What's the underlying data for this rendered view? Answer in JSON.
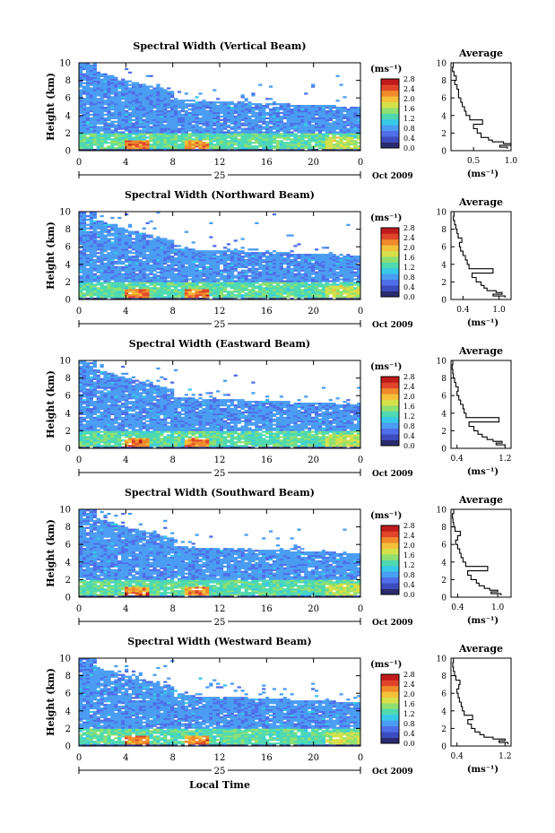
{
  "figure": {
    "xlabel": "Local Time",
    "date_label": "Oct 2009",
    "day_label": "25",
    "average_title": "Average",
    "ylabel": "Height (km)",
    "unit_label": "(ms⁻¹)",
    "colors": {
      "scale": [
        "#2a2a6e",
        "#3b4cc0",
        "#4f6ee8",
        "#4a9df2",
        "#38c9e8",
        "#4fd9b0",
        "#8fe070",
        "#d6e04a",
        "#f5c03a",
        "#f08a2a",
        "#e0452a",
        "#c01a1a"
      ]
    }
  },
  "chart_data": [
    {
      "type": "heatmap",
      "title": "Spectral Width (Vertical Beam)",
      "xlabel": "",
      "ylabel": "Height (km)",
      "xlim": [
        0,
        24
      ],
      "ylim": [
        0,
        10
      ],
      "xticks": [
        "0",
        "4",
        "8",
        "12",
        "16",
        "20",
        "0"
      ],
      "yticks": [
        "0",
        "2",
        "4",
        "6",
        "8",
        "10"
      ],
      "colorbar": {
        "range": [
          0.0,
          2.8
        ],
        "ticks": [
          "0.0",
          "0.4",
          "0.8",
          "1.2",
          "1.6",
          "2.0",
          "2.4",
          "2.8"
        ]
      },
      "average": {
        "xlim": [
          0.2,
          1.0
        ],
        "xticks": [
          "0.5",
          "1.0"
        ],
        "xlabel": "(ms⁻¹)",
        "profile": [
          [
            0.2,
            0.95
          ],
          [
            0.4,
            0.85
          ],
          [
            0.6,
            1.0
          ],
          [
            0.8,
            0.9
          ],
          [
            1.0,
            0.75
          ],
          [
            1.2,
            0.7
          ],
          [
            1.5,
            0.6
          ],
          [
            2.0,
            0.55
          ],
          [
            2.5,
            0.5
          ],
          [
            3.0,
            0.62
          ],
          [
            3.5,
            0.45
          ],
          [
            4.0,
            0.4
          ],
          [
            4.5,
            0.38
          ],
          [
            5.0,
            0.35
          ],
          [
            5.5,
            0.33
          ],
          [
            6.0,
            0.3
          ],
          [
            6.5,
            0.3
          ],
          [
            7.0,
            0.28
          ],
          [
            7.5,
            0.25
          ],
          [
            8.0,
            0.27
          ],
          [
            8.5,
            0.24
          ],
          [
            9.0,
            0.22
          ],
          [
            9.5,
            0.23
          ],
          [
            10.0,
            0.2
          ]
        ]
      }
    },
    {
      "type": "heatmap",
      "title": "Spectral Width (Northward Beam)",
      "xlabel": "",
      "ylabel": "Height (km)",
      "xlim": [
        0,
        24
      ],
      "ylim": [
        0,
        10
      ],
      "xticks": [
        "0",
        "4",
        "8",
        "12",
        "16",
        "20",
        "0"
      ],
      "yticks": [
        "0",
        "2",
        "4",
        "6",
        "8",
        "10"
      ],
      "colorbar": {
        "range": [
          0.0,
          2.8
        ],
        "ticks": [
          "0.0",
          "0.4",
          "0.8",
          "1.2",
          "1.6",
          "2.0",
          "2.4",
          "2.8"
        ]
      },
      "average": {
        "xlim": [
          0.2,
          1.2
        ],
        "xticks": [
          "0.4",
          "1.0"
        ],
        "xlabel": "(ms⁻¹)",
        "profile": [
          [
            0.2,
            1.1
          ],
          [
            0.4,
            0.9
          ],
          [
            0.6,
            1.05
          ],
          [
            0.8,
            0.95
          ],
          [
            1.0,
            0.8
          ],
          [
            1.3,
            0.75
          ],
          [
            1.6,
            0.7
          ],
          [
            2.0,
            0.62
          ],
          [
            2.5,
            0.55
          ],
          [
            3.0,
            0.9
          ],
          [
            3.5,
            0.5
          ],
          [
            4.0,
            0.47
          ],
          [
            4.5,
            0.44
          ],
          [
            5.0,
            0.4
          ],
          [
            5.5,
            0.36
          ],
          [
            6.0,
            0.34
          ],
          [
            6.5,
            0.38
          ],
          [
            7.0,
            0.32
          ],
          [
            7.5,
            0.3
          ],
          [
            8.0,
            0.28
          ],
          [
            8.5,
            0.26
          ],
          [
            9.0,
            0.24
          ],
          [
            9.5,
            0.25
          ],
          [
            10.0,
            0.22
          ]
        ]
      }
    },
    {
      "type": "heatmap",
      "title": "Spectral Width (Eastward Beam)",
      "xlabel": "",
      "ylabel": "Height (km)",
      "xlim": [
        0,
        24
      ],
      "ylim": [
        0,
        10
      ],
      "xticks": [
        "0",
        "4",
        "8",
        "12",
        "16",
        "20",
        "0"
      ],
      "yticks": [
        "0",
        "2",
        "4",
        "6",
        "8",
        "10"
      ],
      "colorbar": {
        "range": [
          0.0,
          2.8
        ],
        "ticks": [
          "0.0",
          "0.4",
          "0.8",
          "1.2",
          "1.6",
          "2.0",
          "2.4",
          "2.8"
        ]
      },
      "average": {
        "xlim": [
          0.3,
          1.3
        ],
        "xticks": [
          "0.4",
          "1.2"
        ],
        "xlabel": "(ms⁻¹)",
        "profile": [
          [
            0.2,
            1.2
          ],
          [
            0.4,
            1.05
          ],
          [
            0.6,
            1.15
          ],
          [
            0.8,
            1.0
          ],
          [
            1.0,
            0.9
          ],
          [
            1.3,
            0.82
          ],
          [
            1.6,
            0.75
          ],
          [
            2.0,
            0.68
          ],
          [
            2.5,
            0.6
          ],
          [
            3.0,
            1.1
          ],
          [
            3.5,
            0.55
          ],
          [
            4.0,
            0.52
          ],
          [
            4.5,
            0.5
          ],
          [
            5.0,
            0.46
          ],
          [
            5.5,
            0.43
          ],
          [
            6.0,
            0.4
          ],
          [
            6.5,
            0.42
          ],
          [
            7.0,
            0.38
          ],
          [
            7.5,
            0.36
          ],
          [
            8.0,
            0.34
          ],
          [
            8.5,
            0.33
          ],
          [
            9.0,
            0.32
          ],
          [
            9.5,
            0.33
          ],
          [
            10.0,
            0.31
          ]
        ]
      }
    },
    {
      "type": "heatmap",
      "title": "Spectral Width (Southward Beam)",
      "xlabel": "",
      "ylabel": "Height (km)",
      "xlim": [
        0,
        24
      ],
      "ylim": [
        0,
        10
      ],
      "xticks": [
        "0",
        "4",
        "8",
        "12",
        "16",
        "20",
        "0"
      ],
      "yticks": [
        "0",
        "2",
        "4",
        "6",
        "8",
        "10"
      ],
      "colorbar": {
        "range": [
          0.0,
          2.8
        ],
        "ticks": [
          "0.0",
          "0.4",
          "0.8",
          "1.2",
          "1.6",
          "2.0",
          "2.4",
          "2.8"
        ]
      },
      "average": {
        "xlim": [
          0.3,
          1.2
        ],
        "xticks": [
          "0.4",
          "1.0"
        ],
        "xlabel": "(ms⁻¹)",
        "profile": [
          [
            0.2,
            1.05
          ],
          [
            0.4,
            0.9
          ],
          [
            0.6,
            1.0
          ],
          [
            0.8,
            0.88
          ],
          [
            1.0,
            0.8
          ],
          [
            1.3,
            0.72
          ],
          [
            1.6,
            0.68
          ],
          [
            2.0,
            0.6
          ],
          [
            2.5,
            0.55
          ],
          [
            3.0,
            0.85
          ],
          [
            3.5,
            0.52
          ],
          [
            4.0,
            0.48
          ],
          [
            4.5,
            0.45
          ],
          [
            5.0,
            0.43
          ],
          [
            5.5,
            0.4
          ],
          [
            6.0,
            0.37
          ],
          [
            6.5,
            0.4
          ],
          [
            7.0,
            0.44
          ],
          [
            7.5,
            0.36
          ],
          [
            8.0,
            0.34
          ],
          [
            8.5,
            0.33
          ],
          [
            9.0,
            0.32
          ],
          [
            9.5,
            0.34
          ],
          [
            10.0,
            0.3
          ]
        ]
      }
    },
    {
      "type": "heatmap",
      "title": "Spectral Width (Westward Beam)",
      "xlabel": "Local Time",
      "ylabel": "Height (km)",
      "xlim": [
        0,
        24
      ],
      "ylim": [
        0,
        10
      ],
      "xticks": [
        "0",
        "4",
        "8",
        "12",
        "16",
        "20",
        "0"
      ],
      "yticks": [
        "0",
        "2",
        "4",
        "6",
        "8",
        "10"
      ],
      "colorbar": {
        "range": [
          0.0,
          2.8
        ],
        "ticks": [
          "0.0",
          "0.4",
          "0.8",
          "1.2",
          "1.6",
          "2.0",
          "2.4",
          "2.8"
        ]
      },
      "average": {
        "xlim": [
          0.3,
          1.3
        ],
        "xticks": [
          "0.4",
          "1.2"
        ],
        "xlabel": "(ms⁻¹)",
        "profile": [
          [
            0.2,
            1.25
          ],
          [
            0.4,
            1.1
          ],
          [
            0.6,
            1.2
          ],
          [
            0.8,
            1.0
          ],
          [
            1.0,
            0.85
          ],
          [
            1.3,
            0.78
          ],
          [
            1.6,
            0.7
          ],
          [
            2.0,
            0.64
          ],
          [
            2.5,
            0.58
          ],
          [
            3.0,
            0.66
          ],
          [
            3.5,
            0.52
          ],
          [
            4.0,
            0.49
          ],
          [
            4.5,
            0.47
          ],
          [
            5.0,
            0.44
          ],
          [
            5.5,
            0.42
          ],
          [
            6.0,
            0.4
          ],
          [
            6.5,
            0.43
          ],
          [
            7.0,
            0.45
          ],
          [
            7.5,
            0.38
          ],
          [
            8.0,
            0.36
          ],
          [
            8.5,
            0.34
          ],
          [
            9.0,
            0.33
          ],
          [
            9.5,
            0.34
          ],
          [
            10.0,
            0.31
          ]
        ]
      }
    }
  ]
}
